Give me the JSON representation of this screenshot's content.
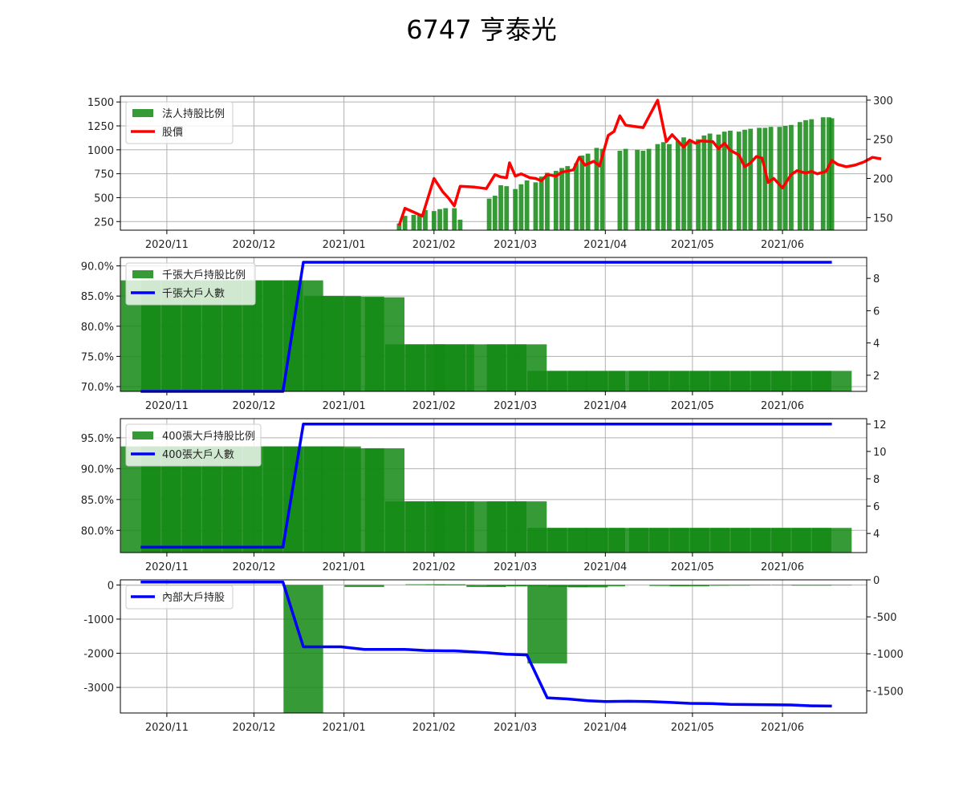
{
  "title": "6747 亨泰光",
  "colors": {
    "bar": "#138a13",
    "price": "#ff0000",
    "holders": "#0000ff",
    "grid": "#b0b0b0"
  },
  "chart_data": [
    {
      "type": "bar+line",
      "legend": [
        "法人持股比例",
        "股價"
      ],
      "x_ticks": [
        "2020/11",
        "2020/12",
        "2021/01",
        "2021/02",
        "2021/03",
        "2021/04",
        "2021/05",
        "2021/06"
      ],
      "x_range": [
        "2020/10/16",
        "2021/06/30"
      ],
      "ylim_left": [
        160,
        1560
      ],
      "ylim_right": [
        134,
        305
      ],
      "yticks_left": [
        "250",
        "500",
        "750",
        "1000",
        "1250",
        "1500"
      ],
      "yticks_right": [
        "150",
        "200",
        "250",
        "300"
      ],
      "bars": [
        [
          "2021/01/20",
          230
        ],
        [
          "2021/01/22",
          310
        ],
        [
          "2021/01/25",
          320
        ],
        [
          "2021/01/27",
          330
        ],
        [
          "2021/01/29",
          370
        ],
        [
          "2021/02/01",
          360
        ],
        [
          "2021/02/03",
          380
        ],
        [
          "2021/02/05",
          390
        ],
        [
          "2021/02/08",
          390
        ],
        [
          "2021/02/10",
          270
        ],
        [
          "2021/02/20",
          490
        ],
        [
          "2021/02/22",
          520
        ],
        [
          "2021/02/24",
          630
        ],
        [
          "2021/02/26",
          620
        ],
        [
          "2021/03/01",
          590
        ],
        [
          "2021/03/03",
          640
        ],
        [
          "2021/03/05",
          680
        ],
        [
          "2021/03/08",
          660
        ],
        [
          "2021/03/10",
          720
        ],
        [
          "2021/03/12",
          760
        ],
        [
          "2021/03/15",
          780
        ],
        [
          "2021/03/17",
          810
        ],
        [
          "2021/03/19",
          830
        ],
        [
          "2021/03/22",
          860
        ],
        [
          "2021/03/24",
          940
        ],
        [
          "2021/03/26",
          960
        ],
        [
          "2021/03/29",
          1020
        ],
        [
          "2021/03/31",
          1010
        ],
        [
          "2021/04/06",
          990
        ],
        [
          "2021/04/08",
          1010
        ],
        [
          "2021/04/12",
          1000
        ],
        [
          "2021/04/14",
          990
        ],
        [
          "2021/04/16",
          1010
        ],
        [
          "2021/04/19",
          1060
        ],
        [
          "2021/04/21",
          1080
        ],
        [
          "2021/04/23",
          1060
        ],
        [
          "2021/04/26",
          1090
        ],
        [
          "2021/04/28",
          1130
        ],
        [
          "2021/04/30",
          1090
        ],
        [
          "2021/05/03",
          1110
        ],
        [
          "2021/05/05",
          1150
        ],
        [
          "2021/05/07",
          1170
        ],
        [
          "2021/05/10",
          1160
        ],
        [
          "2021/05/12",
          1190
        ],
        [
          "2021/05/14",
          1200
        ],
        [
          "2021/05/17",
          1190
        ],
        [
          "2021/05/19",
          1210
        ],
        [
          "2021/05/21",
          1220
        ],
        [
          "2021/05/24",
          1230
        ],
        [
          "2021/05/26",
          1230
        ],
        [
          "2021/05/28",
          1240
        ],
        [
          "2021/05/31",
          1240
        ],
        [
          "2021/06/02",
          1250
        ],
        [
          "2021/06/04",
          1260
        ],
        [
          "2021/06/07",
          1290
        ],
        [
          "2021/06/09",
          1310
        ],
        [
          "2021/06/11",
          1320
        ],
        [
          "2021/06/15",
          1340
        ],
        [
          "2021/06/17",
          1340
        ],
        [
          "2021/06/18",
          1330
        ]
      ],
      "price": [
        [
          "2021/01/20",
          140
        ],
        [
          "2021/01/22",
          162
        ],
        [
          "2021/01/25",
          157
        ],
        [
          "2021/01/28",
          152
        ],
        [
          "2021/02/01",
          200
        ],
        [
          "2021/02/04",
          183
        ],
        [
          "2021/02/06",
          175
        ],
        [
          "2021/02/08",
          165
        ],
        [
          "2021/02/10",
          190
        ],
        [
          "2021/02/15",
          189
        ],
        [
          "2021/02/19",
          187
        ],
        [
          "2021/02/22",
          205
        ],
        [
          "2021/02/24",
          202
        ],
        [
          "2021/02/26",
          201
        ],
        [
          "2021/02/27",
          220
        ],
        [
          "2021/03/01",
          203
        ],
        [
          "2021/03/03",
          206
        ],
        [
          "2021/03/06",
          201
        ],
        [
          "2021/03/08",
          200
        ],
        [
          "2021/03/10",
          197
        ],
        [
          "2021/03/12",
          205
        ],
        [
          "2021/03/15",
          203
        ],
        [
          "2021/03/17",
          208
        ],
        [
          "2021/03/21",
          211
        ],
        [
          "2021/03/23",
          227
        ],
        [
          "2021/03/25",
          217
        ],
        [
          "2021/03/28",
          222
        ],
        [
          "2021/03/30",
          216
        ],
        [
          "2021/04/02",
          255
        ],
        [
          "2021/04/04",
          260
        ],
        [
          "2021/04/06",
          280
        ],
        [
          "2021/04/08",
          268
        ],
        [
          "2021/04/14",
          265
        ],
        [
          "2021/04/19",
          300
        ],
        [
          "2021/04/22",
          247
        ],
        [
          "2021/04/24",
          256
        ],
        [
          "2021/04/28",
          240
        ],
        [
          "2021/04/30",
          249
        ],
        [
          "2021/05/02",
          245
        ],
        [
          "2021/05/04",
          248
        ],
        [
          "2021/05/08",
          247
        ],
        [
          "2021/05/10",
          238
        ],
        [
          "2021/05/12",
          245
        ],
        [
          "2021/05/14",
          236
        ],
        [
          "2021/05/17",
          230
        ],
        [
          "2021/05/19",
          215
        ],
        [
          "2021/05/21",
          220
        ],
        [
          "2021/05/23",
          228
        ],
        [
          "2021/05/25",
          226
        ],
        [
          "2021/05/27",
          195
        ],
        [
          "2021/05/29",
          200
        ],
        [
          "2021/06/01",
          188
        ],
        [
          "2021/06/04",
          205
        ],
        [
          "2021/06/06",
          210
        ],
        [
          "2021/06/09",
          207
        ],
        [
          "2021/06/11",
          209
        ],
        [
          "2021/06/13",
          206
        ],
        [
          "2021/06/16",
          209
        ],
        [
          "2021/06/18",
          223
        ],
        [
          "2021/06/20",
          218
        ],
        [
          "2021/06/23",
          215
        ],
        [
          "2021/06/26",
          217
        ],
        [
          "2021/06/29",
          221
        ],
        [
          "2021/07/02",
          227
        ],
        [
          "2021/07/05",
          225
        ]
      ]
    },
    {
      "type": "bar+line",
      "legend": [
        "千張大戶持股比例",
        "千張大戶人數"
      ],
      "x_ticks": [
        "2020/11",
        "2020/12",
        "2021/01",
        "2021/02",
        "2021/03",
        "2021/04",
        "2021/05",
        "2021/06"
      ],
      "ylim_left": [
        69.2,
        91.4
      ],
      "ylim_right": [
        1.0,
        9.3
      ],
      "yticks_left": [
        "70.0%",
        "75.0%",
        "80.0%",
        "85.0%",
        "90.0%"
      ],
      "yticks_right": [
        "2",
        "4",
        "6",
        "8"
      ],
      "bars": [
        [
          "2020/10/23",
          87.6
        ],
        [
          "2020/10/30",
          87.6
        ],
        [
          "2020/11/06",
          87.6
        ],
        [
          "2020/11/13",
          87.6
        ],
        [
          "2020/11/20",
          87.6
        ],
        [
          "2020/11/27",
          87.6
        ],
        [
          "2020/12/04",
          87.6
        ],
        [
          "2020/12/11",
          87.6
        ],
        [
          "2020/12/18",
          87.6
        ],
        [
          "2020/12/25",
          85.0
        ],
        [
          "2020/12/31",
          85.0
        ],
        [
          "2021/01/08",
          84.9
        ],
        [
          "2021/01/15",
          84.8
        ],
        [
          "2021/01/22",
          77.0
        ],
        [
          "2021/01/29",
          77.0
        ],
        [
          "2021/02/05",
          77.0
        ],
        [
          "2021/02/08",
          77.0
        ],
        [
          "2021/02/19",
          77.0
        ],
        [
          "2021/02/26",
          77.0
        ],
        [
          "2021/03/05",
          77.0
        ],
        [
          "2021/03/12",
          72.6
        ],
        [
          "2021/03/19",
          72.6
        ],
        [
          "2021/03/26",
          72.6
        ],
        [
          "2021/04/01",
          72.6
        ],
        [
          "2021/04/09",
          72.6
        ],
        [
          "2021/04/16",
          72.6
        ],
        [
          "2021/04/23",
          72.6
        ],
        [
          "2021/04/30",
          72.6
        ],
        [
          "2021/05/07",
          72.6
        ],
        [
          "2021/05/14",
          72.6
        ],
        [
          "2021/05/21",
          72.6
        ],
        [
          "2021/05/28",
          72.6
        ],
        [
          "2021/06/04",
          72.6
        ],
        [
          "2021/06/11",
          72.6
        ],
        [
          "2021/06/18",
          72.6
        ]
      ],
      "line": [
        [
          "2020/10/23",
          1
        ],
        [
          "2020/12/11",
          1
        ],
        [
          "2020/12/18",
          9
        ],
        [
          "2021/06/18",
          9
        ]
      ]
    },
    {
      "type": "bar+line",
      "legend": [
        "400張大戶持股比例",
        "400張大戶人數"
      ],
      "x_ticks": [
        "2020/11",
        "2020/12",
        "2021/01",
        "2021/02",
        "2021/03",
        "2021/04",
        "2021/05",
        "2021/06"
      ],
      "ylim_left": [
        76.4,
        98.1
      ],
      "ylim_right": [
        2.6,
        12.4
      ],
      "yticks_left": [
        "80.0%",
        "85.0%",
        "90.0%",
        "95.0%"
      ],
      "yticks_right": [
        "4",
        "6",
        "8",
        "10",
        "12"
      ],
      "bars": [
        [
          "2020/10/23",
          93.6
        ],
        [
          "2020/10/30",
          93.6
        ],
        [
          "2020/11/06",
          93.6
        ],
        [
          "2020/11/13",
          93.6
        ],
        [
          "2020/11/20",
          93.6
        ],
        [
          "2020/11/27",
          93.6
        ],
        [
          "2020/12/04",
          93.6
        ],
        [
          "2020/12/11",
          93.6
        ],
        [
          "2020/12/18",
          93.6
        ],
        [
          "2020/12/25",
          93.6
        ],
        [
          "2020/12/31",
          93.6
        ],
        [
          "2021/01/08",
          93.3
        ],
        [
          "2021/01/15",
          93.3
        ],
        [
          "2021/01/22",
          84.7
        ],
        [
          "2021/01/29",
          84.7
        ],
        [
          "2021/02/05",
          84.7
        ],
        [
          "2021/02/08",
          84.7
        ],
        [
          "2021/02/19",
          84.7
        ],
        [
          "2021/02/26",
          84.7
        ],
        [
          "2021/03/05",
          84.7
        ],
        [
          "2021/03/12",
          80.4
        ],
        [
          "2021/03/19",
          80.4
        ],
        [
          "2021/03/26",
          80.4
        ],
        [
          "2021/04/01",
          80.4
        ],
        [
          "2021/04/09",
          80.4
        ],
        [
          "2021/04/16",
          80.4
        ],
        [
          "2021/04/23",
          80.4
        ],
        [
          "2021/04/30",
          80.4
        ],
        [
          "2021/05/07",
          80.4
        ],
        [
          "2021/05/14",
          80.4
        ],
        [
          "2021/05/21",
          80.4
        ],
        [
          "2021/05/28",
          80.4
        ],
        [
          "2021/06/04",
          80.4
        ],
        [
          "2021/06/11",
          80.4
        ],
        [
          "2021/06/18",
          80.4
        ]
      ],
      "line": [
        [
          "2020/10/23",
          3
        ],
        [
          "2020/12/11",
          3
        ],
        [
          "2020/12/18",
          12
        ],
        [
          "2021/06/18",
          12
        ]
      ]
    },
    {
      "type": "bar+line",
      "legend": [
        "內部大戶持股"
      ],
      "x_ticks": [
        "2020/11",
        "2020/12",
        "2021/01",
        "2021/02",
        "2021/03",
        "2021/04",
        "2021/05",
        "2021/06"
      ],
      "ylim_left": [
        -3750,
        150
      ],
      "ylim_right": [
        -1800,
        0
      ],
      "yticks_left": [
        "0",
        "-1000",
        "-2000",
        "-3000"
      ],
      "yticks_right": [
        "0",
        "-500",
        "-1000",
        "-1500"
      ],
      "bars": [
        [
          "2020/12/18",
          -3750
        ],
        [
          "2021/01/08",
          -60
        ],
        [
          "2021/01/29",
          20
        ],
        [
          "2021/02/05",
          20
        ],
        [
          "2021/02/08",
          -10
        ],
        [
          "2021/02/19",
          -60
        ],
        [
          "2021/02/26",
          -40
        ],
        [
          "2021/03/05",
          -40
        ],
        [
          "2021/03/12",
          -2300
        ],
        [
          "2021/03/19",
          -60
        ],
        [
          "2021/03/26",
          -70
        ],
        [
          "2021/04/01",
          -40
        ],
        [
          "2021/04/23",
          -30
        ],
        [
          "2021/04/30",
          -40
        ],
        [
          "2021/05/07",
          -20
        ],
        [
          "2021/05/14",
          -20
        ],
        [
          "2021/05/21",
          -15
        ],
        [
          "2021/06/04",
          -10
        ],
        [
          "2021/06/11",
          -20
        ],
        [
          "2021/06/18",
          -10
        ]
      ],
      "line": [
        [
          "2020/10/23",
          -30
        ],
        [
          "2020/10/30",
          -30
        ],
        [
          "2020/11/06",
          -30
        ],
        [
          "2020/11/13",
          -30
        ],
        [
          "2020/11/20",
          -30
        ],
        [
          "2020/11/27",
          -30
        ],
        [
          "2020/12/04",
          -30
        ],
        [
          "2020/12/11",
          -30
        ],
        [
          "2020/12/18",
          -905
        ],
        [
          "2020/12/25",
          -905
        ],
        [
          "2020/12/31",
          -905
        ],
        [
          "2021/01/08",
          -940
        ],
        [
          "2021/01/15",
          -940
        ],
        [
          "2021/01/22",
          -940
        ],
        [
          "2021/01/29",
          -955
        ],
        [
          "2021/02/05",
          -960
        ],
        [
          "2021/02/08",
          -960
        ],
        [
          "2021/02/19",
          -985
        ],
        [
          "2021/02/26",
          -1005
        ],
        [
          "2021/03/05",
          -1015
        ],
        [
          "2021/03/12",
          -1595
        ],
        [
          "2021/03/19",
          -1610
        ],
        [
          "2021/03/26",
          -1635
        ],
        [
          "2021/04/01",
          -1645
        ],
        [
          "2021/04/09",
          -1642
        ],
        [
          "2021/04/16",
          -1645
        ],
        [
          "2021/04/23",
          -1656
        ],
        [
          "2021/04/30",
          -1670
        ],
        [
          "2021/05/07",
          -1672
        ],
        [
          "2021/05/14",
          -1683
        ],
        [
          "2021/05/21",
          -1686
        ],
        [
          "2021/05/28",
          -1688
        ],
        [
          "2021/06/04",
          -1692
        ],
        [
          "2021/06/11",
          -1703
        ],
        [
          "2021/06/18",
          -1707
        ]
      ]
    }
  ]
}
